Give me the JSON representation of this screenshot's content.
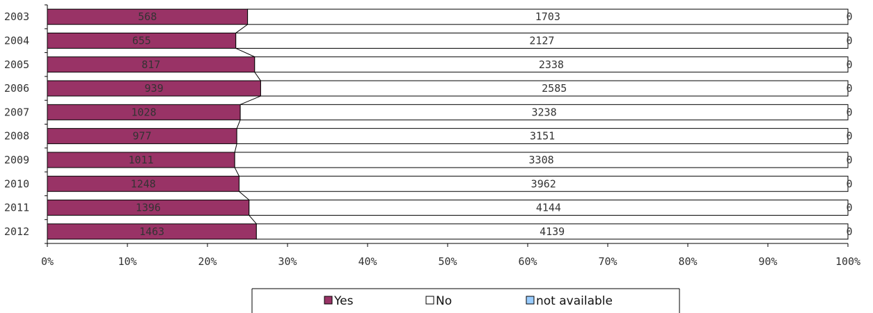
{
  "chart_data": {
    "type": "bar",
    "orientation": "horizontal",
    "stacking": "percent",
    "categories": [
      "2003",
      "2004",
      "2005",
      "2006",
      "2007",
      "2008",
      "2009",
      "2010",
      "2011",
      "2012"
    ],
    "series": [
      {
        "name": "Yes",
        "color": "#993366",
        "values": [
          568,
          655,
          817,
          939,
          1028,
          977,
          1011,
          1248,
          1396,
          1463
        ]
      },
      {
        "name": "No",
        "color": "#ffffff",
        "values": [
          1703,
          2127,
          2338,
          2585,
          3238,
          3151,
          3308,
          3962,
          4144,
          4139
        ]
      },
      {
        "name": "not available",
        "color": "#99ccff",
        "values": [
          0,
          0,
          0,
          0,
          0,
          0,
          0,
          0,
          0,
          0
        ]
      }
    ],
    "x_tick_labels": [
      "0%",
      "10%",
      "20%",
      "30%",
      "40%",
      "50%",
      "60%",
      "70%",
      "80%",
      "90%",
      "100%"
    ],
    "xlim": [
      0,
      100
    ],
    "series_lines": true,
    "grid": false,
    "legend_position": "bottom"
  }
}
